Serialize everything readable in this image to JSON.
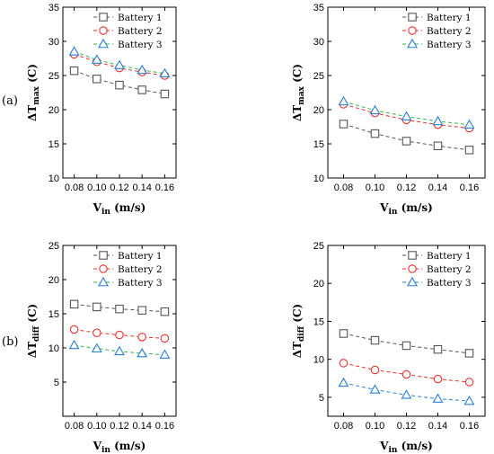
{
  "figure": {
    "panel_labels": [
      "(a)",
      "(b)"
    ]
  },
  "chart_data": [
    {
      "type": "line",
      "x": [
        0.08,
        0.1,
        0.12,
        0.14,
        0.16
      ],
      "xticks": [
        "0.08",
        "0.10",
        "0.12",
        "0.14",
        "0.16"
      ],
      "xlim": [
        0.07,
        0.17
      ],
      "ylim": [
        10,
        35
      ],
      "yticks": [
        10,
        15,
        20,
        25,
        30,
        35
      ],
      "xlabel": {
        "main": "V",
        "sub": "in",
        "rest": " (m/s)"
      },
      "ylabel": {
        "main": "ΔT",
        "sub": "max",
        "rest": " (C)"
      },
      "legend": "top-right",
      "series": [
        {
          "name": "Battery 1",
          "color": "#555555",
          "marker": "square",
          "values": [
            25.7,
            24.5,
            23.6,
            22.9,
            22.3
          ]
        },
        {
          "name": "Battery 2",
          "color": "#e8312b",
          "marker": "circle",
          "values": [
            28.1,
            27.0,
            26.1,
            25.5,
            25.0
          ]
        },
        {
          "name": "Battery 3",
          "color": "#2a7fd4",
          "marker": "triangle",
          "values": [
            28.5,
            27.3,
            26.5,
            25.8,
            25.3
          ],
          "line_color": "#39b54a"
        }
      ]
    },
    {
      "type": "line",
      "x": [
        0.08,
        0.1,
        0.12,
        0.14,
        0.16
      ],
      "xticks": [
        "0.08",
        "0.10",
        "0.12",
        "0.14",
        "0.16"
      ],
      "xlim": [
        0.07,
        0.17
      ],
      "ylim": [
        10,
        35
      ],
      "yticks": [
        10,
        15,
        20,
        25,
        30,
        35
      ],
      "xlabel": {
        "main": "V",
        "sub": "in",
        "rest": " (m/s)"
      },
      "ylabel": {
        "main": "ΔT",
        "sub": "max",
        "rest": " (C)"
      },
      "legend": "top-right",
      "series": [
        {
          "name": "Battery 1",
          "color": "#555555",
          "marker": "square",
          "values": [
            17.9,
            16.5,
            15.4,
            14.7,
            14.1
          ]
        },
        {
          "name": "Battery 2",
          "color": "#e8312b",
          "marker": "circle",
          "values": [
            20.8,
            19.5,
            18.5,
            17.8,
            17.3
          ]
        },
        {
          "name": "Battery 3",
          "color": "#2a7fd4",
          "marker": "triangle",
          "values": [
            21.2,
            19.9,
            19.0,
            18.3,
            17.8
          ],
          "line_color": "#39b54a"
        }
      ]
    },
    {
      "type": "line",
      "x": [
        0.08,
        0.1,
        0.12,
        0.14,
        0.16
      ],
      "xticks": [
        "0.08",
        "0.10",
        "0.12",
        "0.14",
        "0.16"
      ],
      "xlim": [
        0.07,
        0.17
      ],
      "ylim": [
        0,
        25
      ],
      "yticks": [
        5,
        10,
        15,
        20,
        25
      ],
      "xlabel": {
        "main": "V",
        "sub": "in",
        "rest": " (m/s)"
      },
      "ylabel": {
        "main": "ΔT",
        "sub": "diff",
        "rest": " (C)"
      },
      "legend": "top-right",
      "series": [
        {
          "name": "Battery 1",
          "color": "#555555",
          "marker": "square",
          "values": [
            16.4,
            16.0,
            15.7,
            15.5,
            15.3
          ]
        },
        {
          "name": "Battery 2",
          "color": "#e8312b",
          "marker": "circle",
          "values": [
            12.7,
            12.2,
            11.9,
            11.6,
            11.4
          ]
        },
        {
          "name": "Battery 3",
          "color": "#2a7fd4",
          "marker": "triangle",
          "values": [
            10.4,
            9.9,
            9.5,
            9.2,
            9.0
          ],
          "line_color": "#39b54a"
        }
      ]
    },
    {
      "type": "line",
      "x": [
        0.08,
        0.1,
        0.12,
        0.14,
        0.16
      ],
      "xticks": [
        "0.08",
        "0.10",
        "0.12",
        "0.14",
        "0.16"
      ],
      "xlim": [
        0.07,
        0.17
      ],
      "ylim": [
        2.5,
        25
      ],
      "yticks": [
        5,
        10,
        15,
        20,
        25
      ],
      "xlabel": {
        "main": "V",
        "sub": "in",
        "rest": " (m/s)"
      },
      "ylabel": {
        "main": "ΔT",
        "sub": "diff",
        "rest": " (C)"
      },
      "legend": "top-right",
      "series": [
        {
          "name": "Battery 1",
          "color": "#555555",
          "marker": "square",
          "values": [
            13.4,
            12.5,
            11.8,
            11.3,
            10.8
          ]
        },
        {
          "name": "Battery 2",
          "color": "#e8312b",
          "marker": "circle",
          "values": [
            9.5,
            8.6,
            8.0,
            7.4,
            7.0
          ]
        },
        {
          "name": "Battery 3",
          "color": "#2a7fd4",
          "marker": "triangle",
          "values": [
            6.9,
            6.0,
            5.3,
            4.8,
            4.5
          ],
          "line_color": "#2a7fd4"
        }
      ]
    }
  ]
}
